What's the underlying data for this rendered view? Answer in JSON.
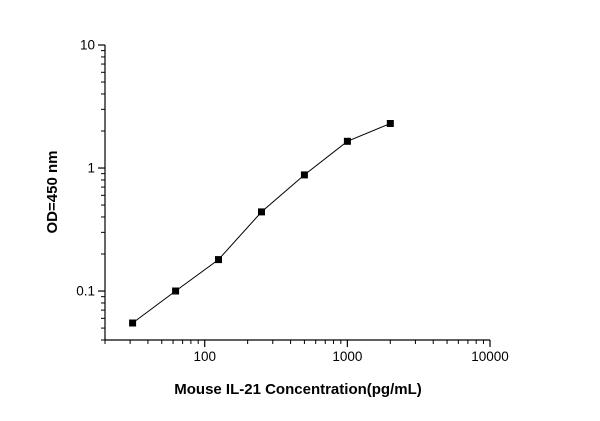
{
  "figure": {
    "background": "#ffffff",
    "foreground": "#000000"
  },
  "chart_data": {
    "type": "line",
    "title": "",
    "xlabel": "Mouse IL-21 Concentration(pg/mL)",
    "ylabel": "OD=450 nm",
    "xscale": "log",
    "yscale": "log",
    "xlim": [
      20,
      10000
    ],
    "ylim": [
      0.04,
      10
    ],
    "x": [
      31.25,
      62.5,
      125,
      250,
      500,
      1000,
      2000
    ],
    "y": [
      0.055,
      0.1,
      0.18,
      0.44,
      0.88,
      1.65,
      2.3
    ],
    "x_ticks": [
      100,
      1000,
      10000
    ],
    "x_tick_labels": [
      "100",
      "1000",
      "10000"
    ],
    "y_ticks": [
      0.1,
      1,
      10
    ],
    "y_tick_labels": [
      "0.1",
      "1",
      "10"
    ],
    "marker": "filled-square",
    "series_color": "#000000",
    "axis_color": "#000000",
    "grid": false,
    "legend_position": "none"
  }
}
